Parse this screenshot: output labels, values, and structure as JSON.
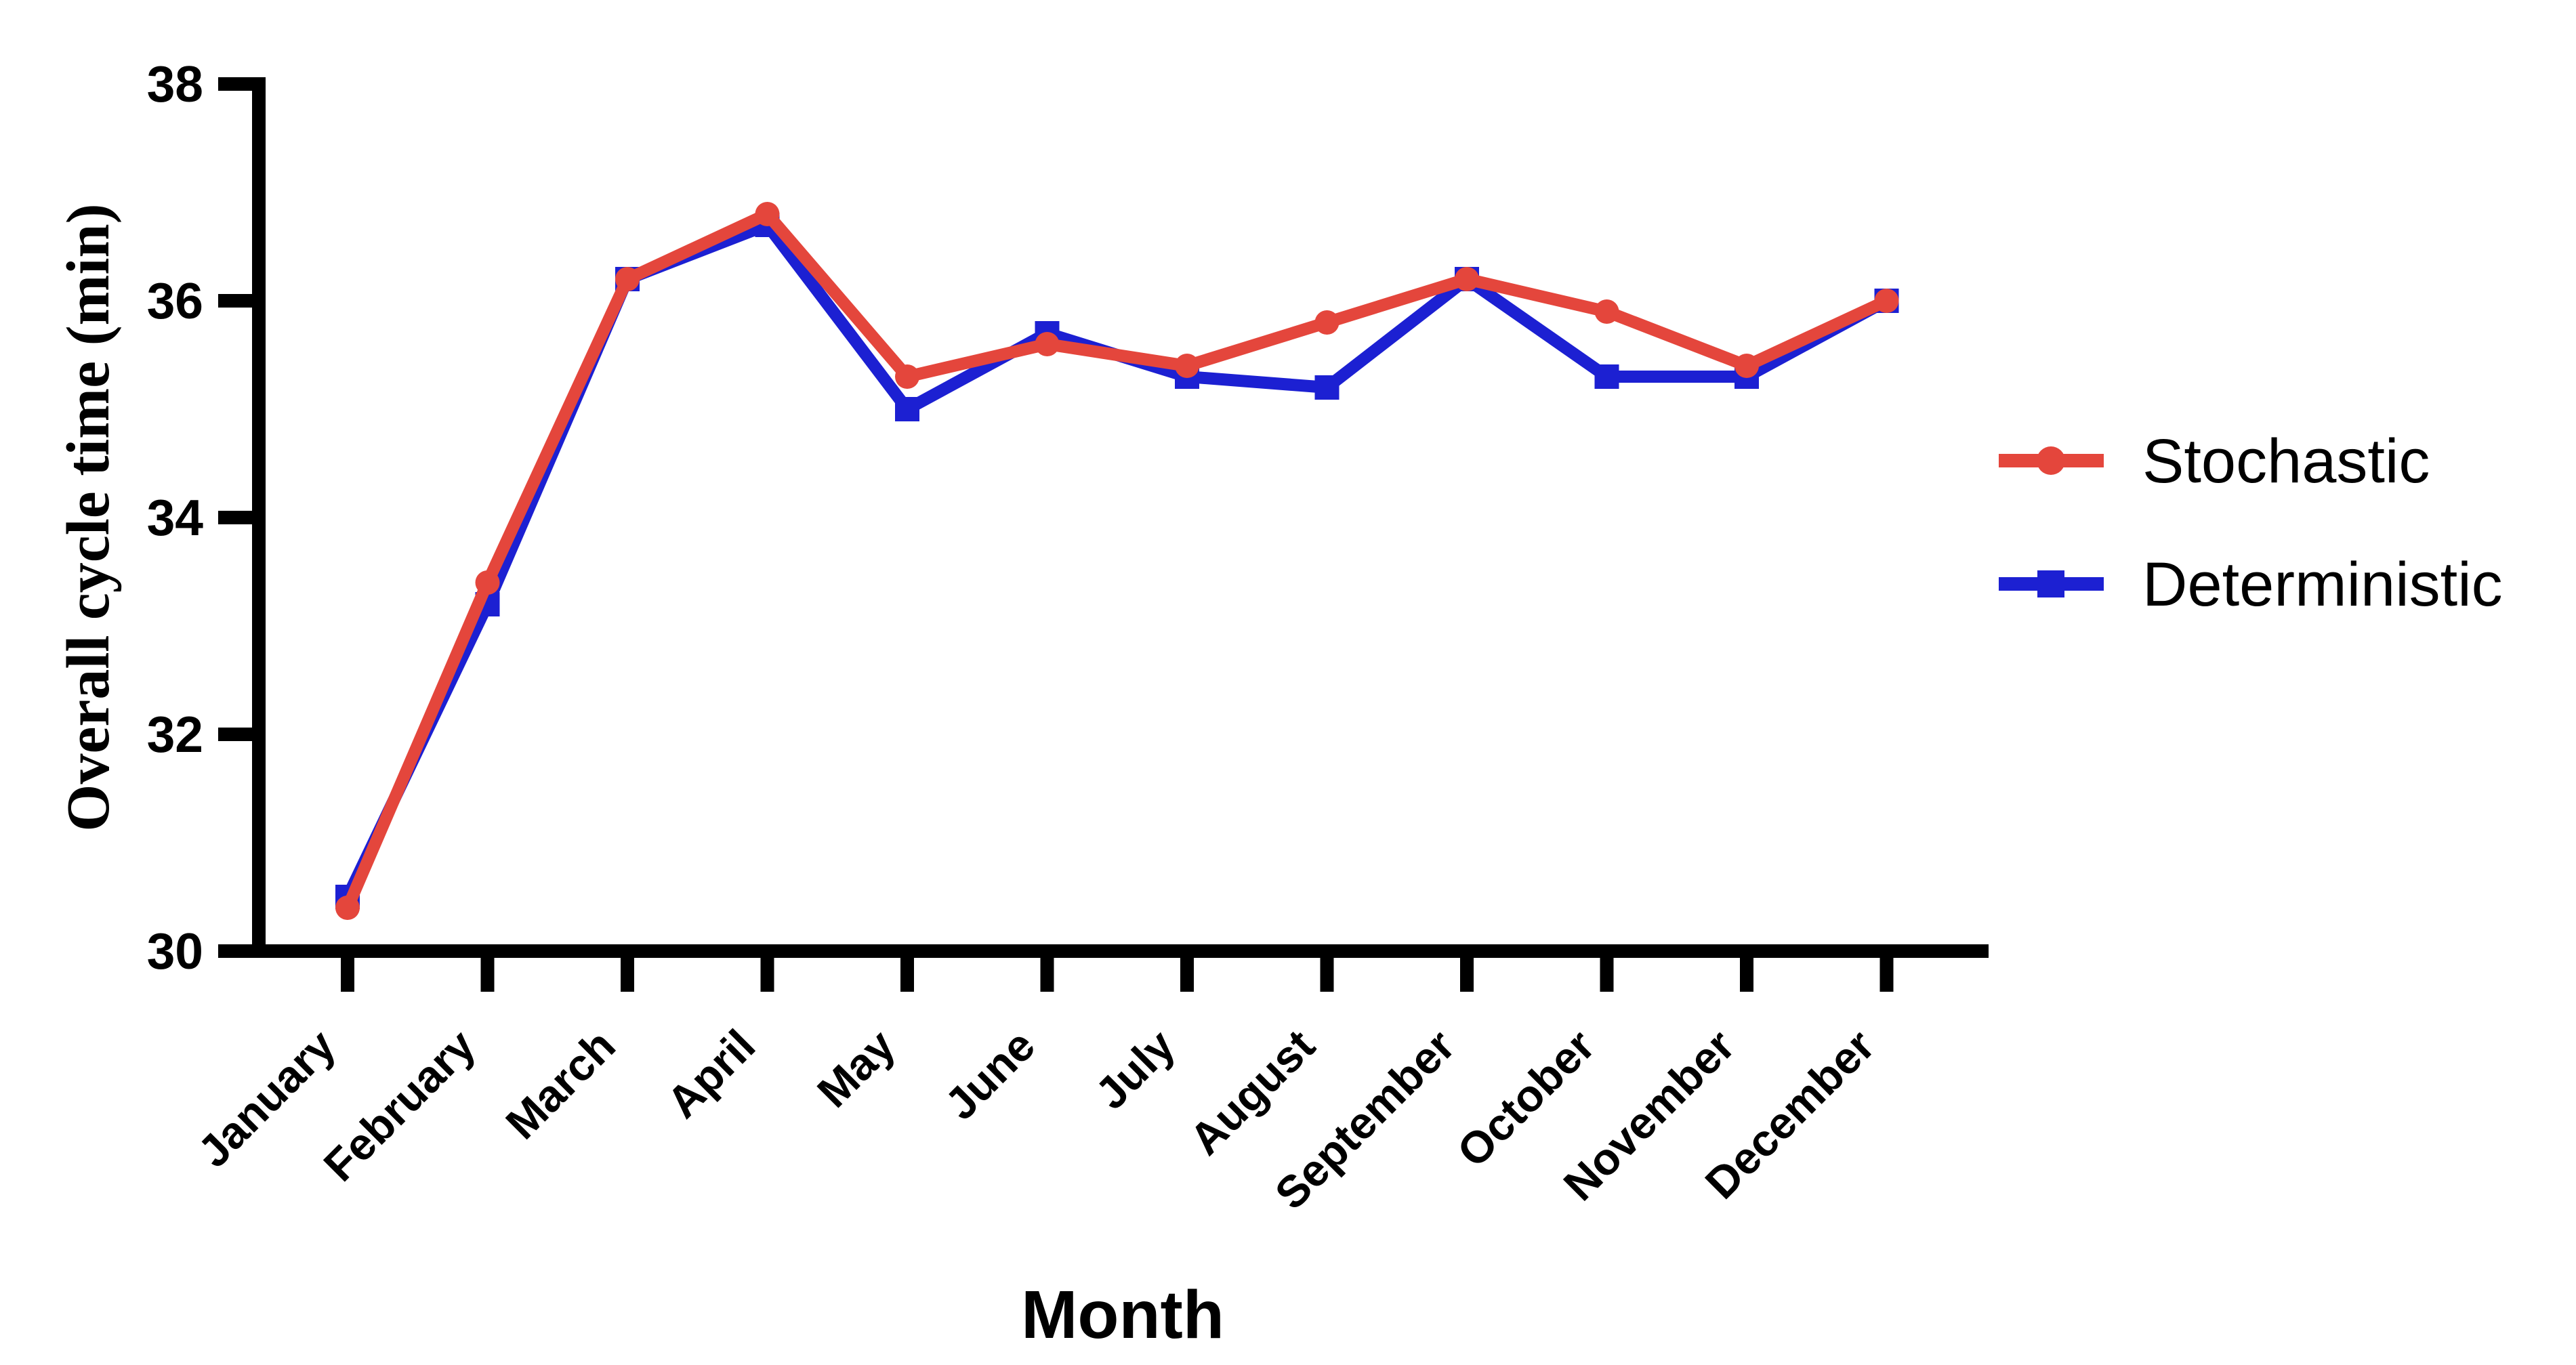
{
  "chart_data": {
    "type": "line",
    "title": "",
    "xlabel": "Month",
    "ylabel": "Overall cycle time (min)",
    "ylim": [
      30,
      38
    ],
    "yticks": [
      30,
      32,
      34,
      36,
      38
    ],
    "grid": false,
    "legend_position": "right",
    "axis_color": "#000000",
    "categories": [
      "January",
      "February",
      "March",
      "April",
      "May",
      "June",
      "July",
      "August",
      "September",
      "October",
      "November",
      "December"
    ],
    "series": [
      {
        "name": "Stochastic",
        "color": "#E4463C",
        "marker": "circle",
        "values": [
          30.4,
          33.4,
          36.2,
          36.8,
          35.3,
          35.6,
          35.4,
          35.8,
          36.2,
          35.9,
          35.4,
          36.0
        ]
      },
      {
        "name": "Deterministic",
        "color": "#1C20D2",
        "marker": "square",
        "values": [
          30.5,
          33.2,
          36.2,
          36.7,
          35.0,
          35.7,
          35.3,
          35.2,
          36.2,
          35.3,
          35.3,
          36.0
        ]
      }
    ]
  }
}
